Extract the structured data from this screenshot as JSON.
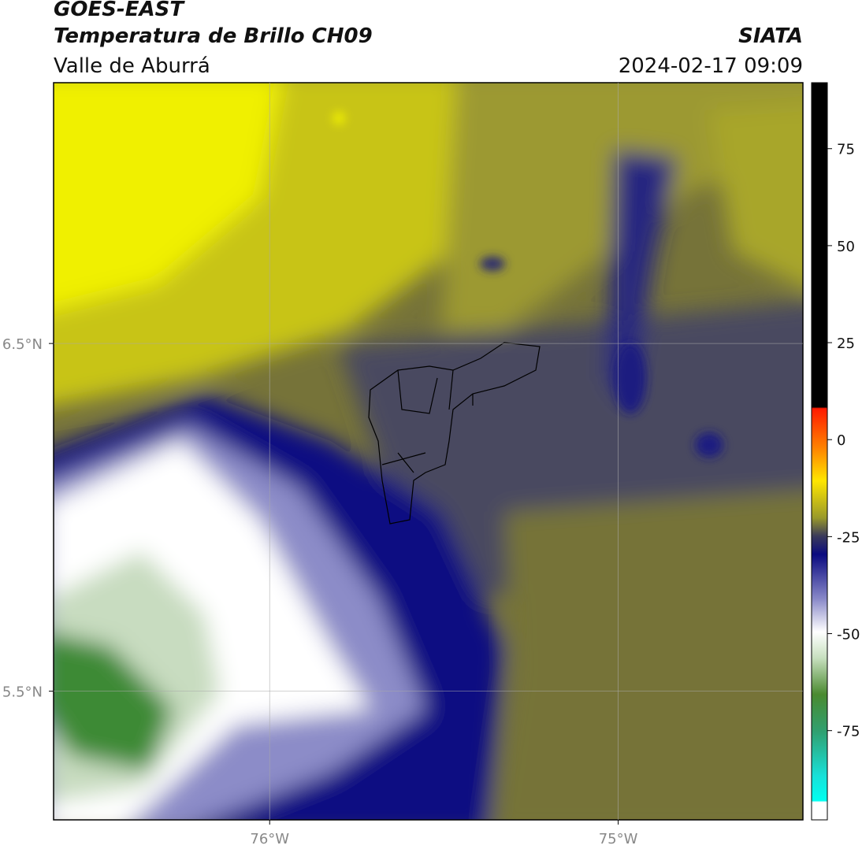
{
  "header": {
    "title": "GOES-EAST",
    "subtitle": "Temperatura de Brillo CH09",
    "region": "Valle de Aburrá",
    "source": "SIATA",
    "datetime": "2024-02-17 09:09"
  },
  "map": {
    "xlim": [
      -76.62,
      -74.47
    ],
    "ylim": [
      5.13,
      7.25
    ],
    "xticks": [
      {
        "value": -76,
        "label": "76°W"
      },
      {
        "value": -75,
        "label": "75°W"
      }
    ],
    "yticks": [
      {
        "value": 6.5,
        "label": "6.5°N"
      },
      {
        "value": 5.5,
        "label": "5.5°N"
      }
    ],
    "grid": true
  },
  "colorbar": {
    "lim": [
      -98,
      92
    ],
    "ticks": [
      75,
      50,
      25,
      0,
      -25,
      -50,
      -75
    ]
  }
}
